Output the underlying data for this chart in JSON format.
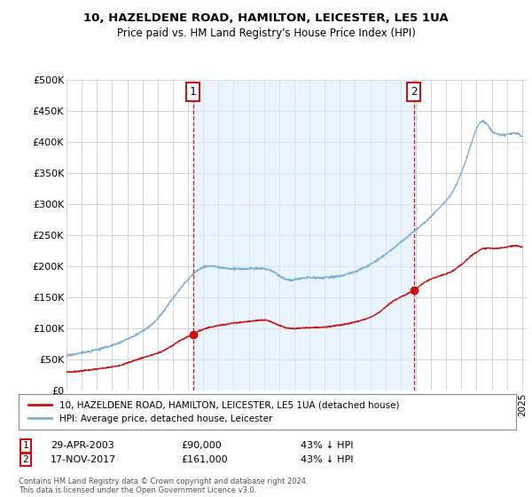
{
  "title": "10, HAZELDENE ROAD, HAMILTON, LEICESTER, LE5 1UA",
  "subtitle": "Price paid vs. HM Land Registry's House Price Index (HPI)",
  "ylim": [
    0,
    500000
  ],
  "yticks": [
    0,
    50000,
    100000,
    150000,
    200000,
    250000,
    300000,
    350000,
    400000,
    450000,
    500000
  ],
  "ytick_labels": [
    "£0",
    "£50K",
    "£100K",
    "£150K",
    "£200K",
    "£250K",
    "£300K",
    "£350K",
    "£400K",
    "£450K",
    "£500K"
  ],
  "hpi_color": "#7bafd4",
  "hpi_fill_color": "#ddeeff",
  "price_color": "#cc1111",
  "marker_color": "#cc1111",
  "transaction1": {
    "date_num": 2003.32,
    "price": 90000,
    "label": "1",
    "date_str": "29-APR-2003",
    "pct": "43% ↓ HPI"
  },
  "transaction2": {
    "date_num": 2017.88,
    "price": 161000,
    "label": "2",
    "date_str": "17-NOV-2017",
    "pct": "43% ↓ HPI"
  },
  "legend_line1": "10, HAZELDENE ROAD, HAMILTON, LEICESTER, LE5 1UA (detached house)",
  "legend_line2": "HPI: Average price, detached house, Leicester",
  "footer": "Contains HM Land Registry data © Crown copyright and database right 2024.\nThis data is licensed under the Open Government Licence v3.0.",
  "background_color": "#ffffff",
  "grid_color": "#cccccc",
  "xlim_left": 1995.0,
  "xlim_right": 2025.3
}
